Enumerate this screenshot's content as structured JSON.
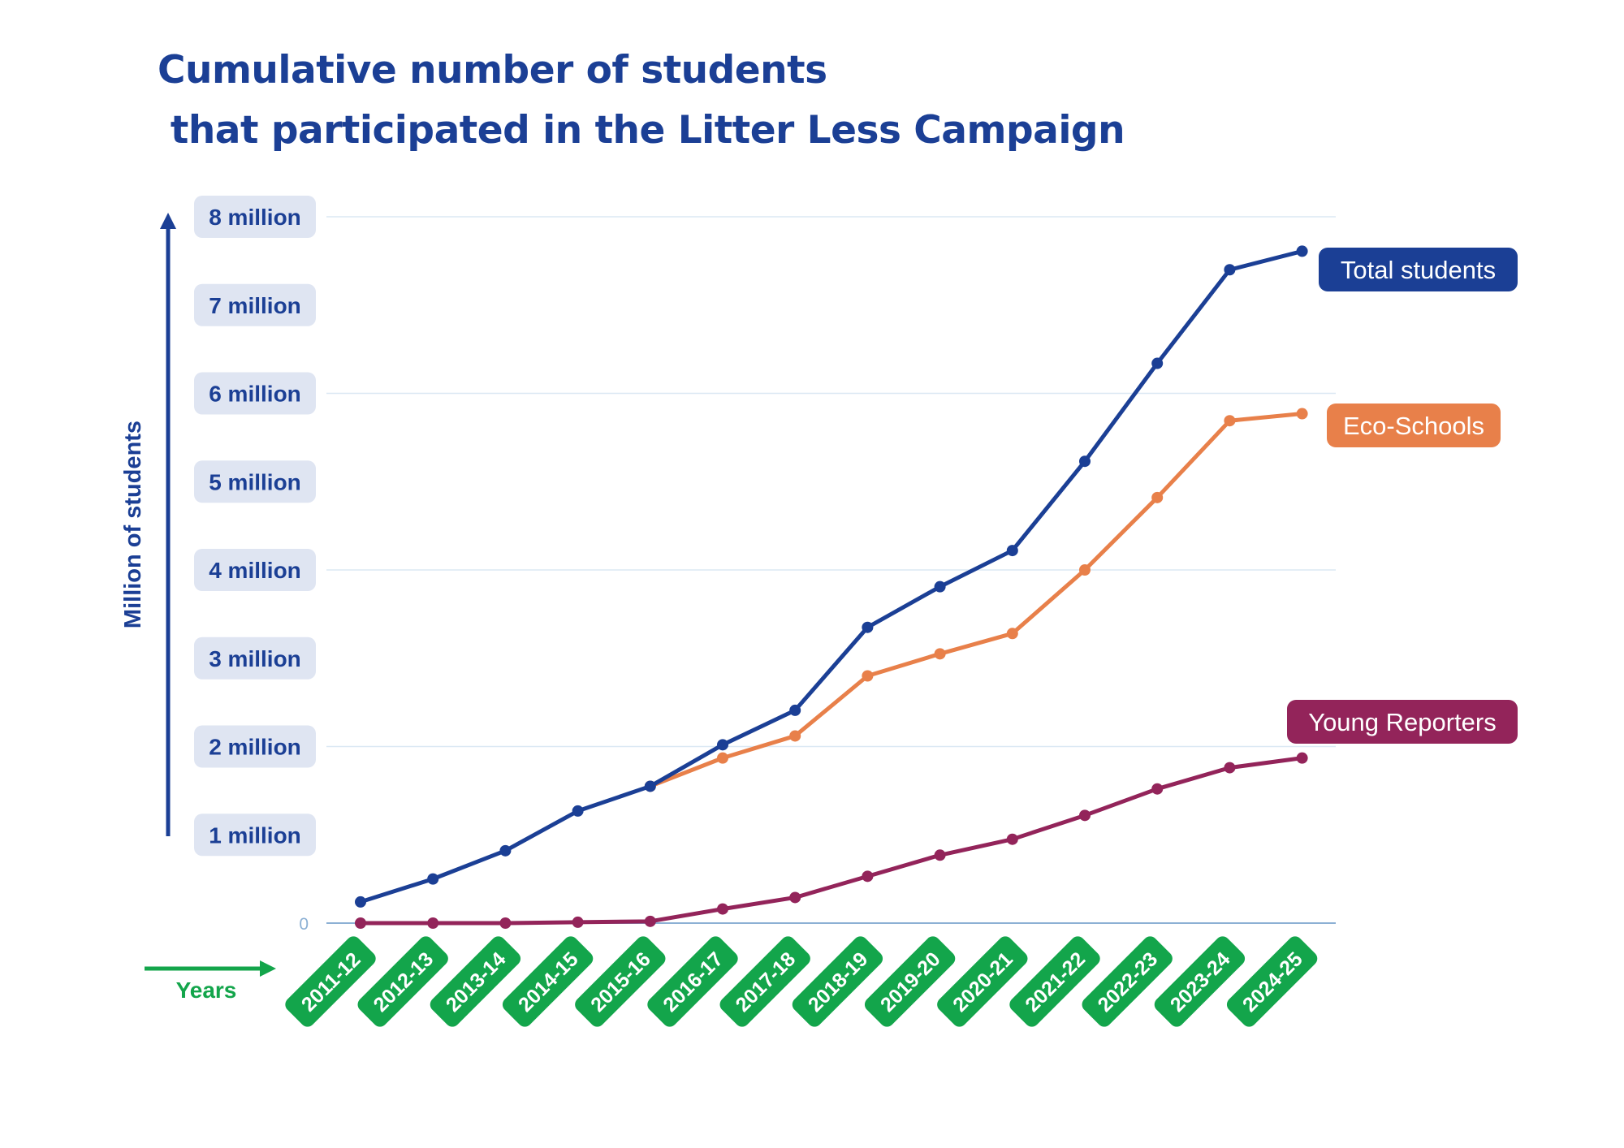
{
  "chart_data": {
    "type": "line",
    "title": [
      "Cumulative number of students",
      " that participated in the Litter Less Campaign"
    ],
    "xlabel": "Years",
    "ylabel": "Million of students",
    "ylim": [
      0,
      8
    ],
    "zero_label": "0",
    "y_ticks": [
      {
        "value": 8,
        "label": "8 million"
      },
      {
        "value": 7,
        "label": "7 million"
      },
      {
        "value": 6,
        "label": "6 million"
      },
      {
        "value": 5,
        "label": "5 million"
      },
      {
        "value": 4,
        "label": "4 million"
      },
      {
        "value": 3,
        "label": "3 million"
      },
      {
        "value": 2,
        "label": "2 million"
      },
      {
        "value": 1,
        "label": "1 million"
      }
    ],
    "gridlines": [
      8,
      6,
      4,
      2,
      0
    ],
    "categories": [
      "2011-12",
      "2012-13",
      "2013-14",
      "2014-15",
      "2015-16",
      "2016-17",
      "2017-18",
      "2018-19",
      "2019-20",
      "2020-21",
      "2021-22",
      "2022-23",
      "2023-24",
      "2024-25"
    ],
    "series": [
      {
        "name": "Total students",
        "color": "#1b3f95",
        "values": [
          0.24,
          0.5,
          0.82,
          1.27,
          1.55,
          2.02,
          2.41,
          3.35,
          3.81,
          4.22,
          5.23,
          6.34,
          7.4,
          7.61
        ]
      },
      {
        "name": "Eco-Schools",
        "color": "#e8804a",
        "values": [
          null,
          null,
          null,
          null,
          1.55,
          1.87,
          2.12,
          2.8,
          3.05,
          3.28,
          4.0,
          4.82,
          5.69,
          5.77
        ]
      },
      {
        "name": "Young Reporters",
        "color": "#93245a",
        "values": [
          0.0,
          0.0,
          0.0,
          0.01,
          0.02,
          0.16,
          0.29,
          0.53,
          0.77,
          0.95,
          1.22,
          1.52,
          1.76,
          1.87
        ]
      }
    ],
    "colors": {
      "title": "#1b3f95",
      "axis": "#1b3f95",
      "year_badge": "#13a54b",
      "y_badge": "#dfe5f2",
      "grid": "#dbe8f4",
      "zero": "#8cb0d4"
    }
  }
}
